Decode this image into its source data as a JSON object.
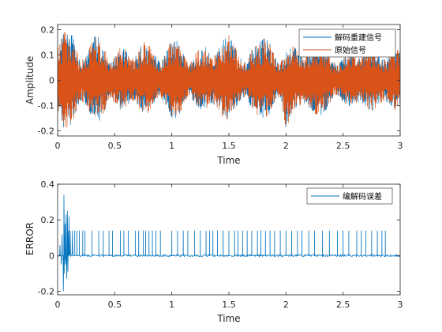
{
  "chart_data": [
    {
      "type": "line",
      "title": "",
      "xlabel": "Time",
      "ylabel": "Amplitude",
      "xlim": [
        0,
        3
      ],
      "ylim": [
        -0.22,
        0.22
      ],
      "xticks": [
        "0",
        "0.5",
        "1",
        "1.5",
        "2",
        "2.5",
        "3"
      ],
      "yticks": [
        "-0.2",
        "-0.1",
        "0",
        "0.1",
        "0.2"
      ],
      "grid": false,
      "legend_position": "top-right",
      "series": [
        {
          "name": "解码重建信号",
          "color": "#0072BD",
          "x": [
            0,
            0.05,
            0.1,
            0.15,
            0.2,
            0.25,
            0.3,
            0.35,
            0.4,
            0.45,
            0.5,
            0.55,
            0.6,
            0.65,
            0.7,
            0.75,
            0.8,
            0.85,
            0.9,
            0.95,
            1,
            1.05,
            1.1,
            1.15,
            1.2,
            1.25,
            1.3,
            1.35,
            1.4,
            1.45,
            1.5,
            1.55,
            1.6,
            1.65,
            1.7,
            1.75,
            1.8,
            1.85,
            1.9,
            1.95,
            2,
            2.05,
            2.1,
            2.15,
            2.2,
            2.25,
            2.3,
            2.35,
            2.4,
            2.45,
            2.5,
            2.55,
            2.6,
            2.65,
            2.7,
            2.75,
            2.8,
            2.85,
            2.9,
            2.95,
            3
          ],
          "upper": [
            0.14,
            0.19,
            0.2,
            0.16,
            0.08,
            0.1,
            0.17,
            0.18,
            0.15,
            0.07,
            0.09,
            0.13,
            0.12,
            0.08,
            0.11,
            0.16,
            0.14,
            0.1,
            0.07,
            0.11,
            0.17,
            0.16,
            0.11,
            0.06,
            0.1,
            0.14,
            0.13,
            0.09,
            0.12,
            0.16,
            0.18,
            0.14,
            0.09,
            0.07,
            0.12,
            0.15,
            0.17,
            0.16,
            0.1,
            0.07,
            0.11,
            0.14,
            0.12,
            0.09,
            0.12,
            0.15,
            0.16,
            0.13,
            0.08,
            0.06,
            0.1,
            0.12,
            0.11,
            0.09,
            0.12,
            0.14,
            0.12,
            0.08,
            0.1,
            0.13,
            0.12
          ],
          "lower": [
            -0.12,
            -0.19,
            -0.2,
            -0.15,
            -0.08,
            -0.1,
            -0.15,
            -0.17,
            -0.14,
            -0.07,
            -0.09,
            -0.12,
            -0.11,
            -0.08,
            -0.1,
            -0.14,
            -0.13,
            -0.09,
            -0.07,
            -0.1,
            -0.15,
            -0.16,
            -0.1,
            -0.06,
            -0.09,
            -0.13,
            -0.12,
            -0.09,
            -0.11,
            -0.15,
            -0.16,
            -0.13,
            -0.08,
            -0.07,
            -0.11,
            -0.14,
            -0.15,
            -0.14,
            -0.09,
            -0.07,
            -0.2,
            -0.13,
            -0.11,
            -0.09,
            -0.11,
            -0.14,
            -0.15,
            -0.12,
            -0.08,
            -0.06,
            -0.09,
            -0.11,
            -0.1,
            -0.08,
            -0.11,
            -0.13,
            -0.11,
            -0.08,
            -0.09,
            -0.12,
            -0.11
          ]
        },
        {
          "name": "原始信号",
          "color": "#D95319",
          "x": [
            0,
            0.05,
            0.1,
            0.15,
            0.2,
            0.25,
            0.3,
            0.35,
            0.4,
            0.45,
            0.5,
            0.55,
            0.6,
            0.65,
            0.7,
            0.75,
            0.8,
            0.85,
            0.9,
            0.95,
            1,
            1.05,
            1.1,
            1.15,
            1.2,
            1.25,
            1.3,
            1.35,
            1.4,
            1.45,
            1.5,
            1.55,
            1.6,
            1.65,
            1.7,
            1.75,
            1.8,
            1.85,
            1.9,
            1.95,
            2,
            2.05,
            2.1,
            2.15,
            2.2,
            2.25,
            2.3,
            2.35,
            2.4,
            2.45,
            2.5,
            2.55,
            2.6,
            2.65,
            2.7,
            2.75,
            2.8,
            2.85,
            2.9,
            2.95,
            3
          ],
          "upper": [
            0.14,
            0.19,
            0.2,
            0.16,
            0.08,
            0.1,
            0.17,
            0.18,
            0.15,
            0.07,
            0.09,
            0.13,
            0.12,
            0.08,
            0.11,
            0.16,
            0.14,
            0.1,
            0.07,
            0.11,
            0.17,
            0.16,
            0.11,
            0.06,
            0.1,
            0.14,
            0.13,
            0.09,
            0.12,
            0.16,
            0.18,
            0.14,
            0.09,
            0.07,
            0.12,
            0.15,
            0.17,
            0.16,
            0.1,
            0.07,
            0.11,
            0.14,
            0.12,
            0.09,
            0.12,
            0.15,
            0.16,
            0.13,
            0.08,
            0.06,
            0.1,
            0.12,
            0.11,
            0.09,
            0.12,
            0.14,
            0.12,
            0.08,
            0.1,
            0.13,
            0.12
          ],
          "lower": [
            -0.12,
            -0.19,
            -0.2,
            -0.15,
            -0.08,
            -0.1,
            -0.15,
            -0.17,
            -0.14,
            -0.07,
            -0.09,
            -0.12,
            -0.11,
            -0.08,
            -0.1,
            -0.14,
            -0.13,
            -0.09,
            -0.07,
            -0.1,
            -0.15,
            -0.16,
            -0.1,
            -0.06,
            -0.09,
            -0.13,
            -0.12,
            -0.09,
            -0.11,
            -0.15,
            -0.16,
            -0.13,
            -0.08,
            -0.07,
            -0.11,
            -0.14,
            -0.15,
            -0.14,
            -0.09,
            -0.07,
            -0.2,
            -0.13,
            -0.11,
            -0.09,
            -0.11,
            -0.14,
            -0.15,
            -0.12,
            -0.08,
            -0.06,
            -0.09,
            -0.11,
            -0.1,
            -0.08,
            -0.11,
            -0.13,
            -0.11,
            -0.08,
            -0.09,
            -0.12,
            -0.11
          ]
        }
      ]
    },
    {
      "type": "line",
      "title": "",
      "xlabel": "Time",
      "ylabel": "ERROR",
      "xlim": [
        0,
        3
      ],
      "ylim": [
        -0.22,
        0.4
      ],
      "xticks": [
        "0",
        "0.5",
        "1",
        "1.5",
        "2",
        "2.5",
        "3"
      ],
      "yticks": [
        "-0.2",
        "0",
        "0.2",
        "0.4"
      ],
      "grid": false,
      "legend_position": "top-right",
      "series": [
        {
          "name": "编解码误差",
          "color": "#0072BD",
          "baseline_noise": 0.006,
          "transient": [
            {
              "x": 0.02,
              "y": 0.06
            },
            {
              "x": 0.03,
              "y": -0.05
            },
            {
              "x": 0.04,
              "y": 0.12
            },
            {
              "x": 0.05,
              "y": -0.2
            },
            {
              "x": 0.055,
              "y": 0.34
            },
            {
              "x": 0.06,
              "y": -0.1
            },
            {
              "x": 0.065,
              "y": 0.18
            },
            {
              "x": 0.07,
              "y": -0.05
            },
            {
              "x": 0.075,
              "y": 0.23
            },
            {
              "x": 0.08,
              "y": -0.13
            },
            {
              "x": 0.085,
              "y": 0.25
            },
            {
              "x": 0.09,
              "y": -0.09
            },
            {
              "x": 0.095,
              "y": 0.14
            },
            {
              "x": 0.1,
              "y": 0.22
            },
            {
              "x": 0.11,
              "y": 0.14
            },
            {
              "x": 0.13,
              "y": 0.14
            }
          ],
          "spike_x": [
            0.15,
            0.17,
            0.19,
            0.22,
            0.24,
            0.3,
            0.36,
            0.4,
            0.45,
            0.48,
            0.55,
            0.58,
            0.62,
            0.68,
            0.71,
            0.75,
            0.77,
            0.8,
            0.83,
            0.86,
            0.9,
            1.0,
            1.05,
            1.1,
            1.14,
            1.2,
            1.25,
            1.3,
            1.33,
            1.36,
            1.4,
            1.45,
            1.5,
            1.55,
            1.58,
            1.62,
            1.66,
            1.7,
            1.75,
            1.78,
            1.82,
            1.86,
            1.9,
            1.95,
            2.0,
            2.05,
            2.1,
            2.14,
            2.2,
            2.25,
            2.32,
            2.38,
            2.45,
            2.5,
            2.55,
            2.62,
            2.66,
            2.7,
            2.75,
            2.8,
            2.84,
            2.87
          ],
          "spike_y": 0.14
        }
      ]
    }
  ]
}
